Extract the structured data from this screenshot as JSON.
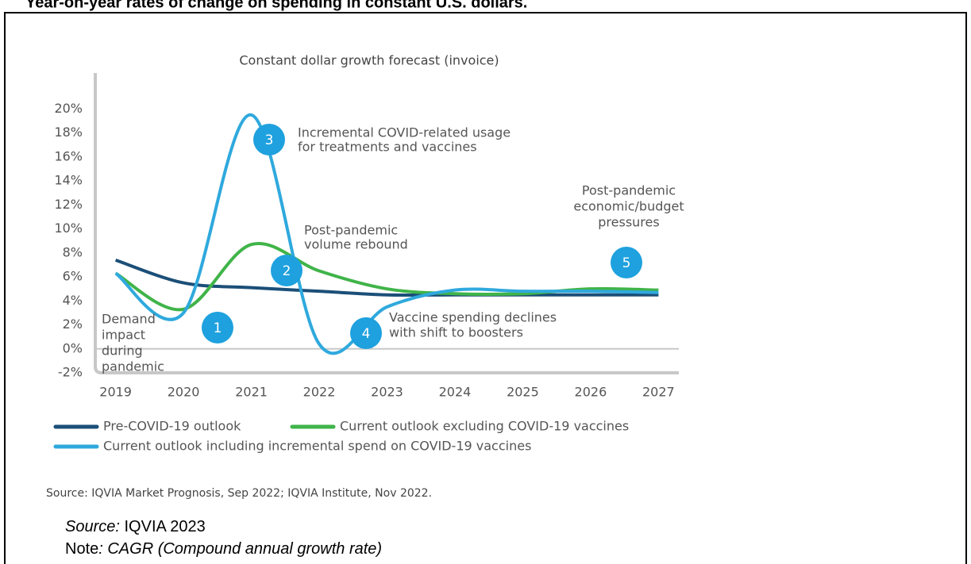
{
  "header": "Year-on-year rates of change on spending in constant U.S. dollars.",
  "chart_data": {
    "type": "line",
    "title": "Constant dollar growth forecast (invoice)",
    "x": [
      2019,
      2020,
      2021,
      2022,
      2023,
      2024,
      2025,
      2026,
      2027
    ],
    "xlim": [
      2018.7,
      2027.3
    ],
    "xticks": [
      2019,
      2020,
      2021,
      2022,
      2023,
      2024,
      2025,
      2026,
      2027
    ],
    "ylim": [
      -2,
      23
    ],
    "yticks": [
      {
        "value": -2,
        "label": "-2%"
      },
      {
        "value": 0,
        "label": "0%"
      },
      {
        "value": 2,
        "label": "2%"
      },
      {
        "value": 4,
        "label": "4%"
      },
      {
        "value": 6,
        "label": "6%"
      },
      {
        "value": 8,
        "label": "8%"
      },
      {
        "value": 10,
        "label": "10%"
      },
      {
        "value": 12,
        "label": "12%"
      },
      {
        "value": 14,
        "label": "14%"
      },
      {
        "value": 16,
        "label": "16%"
      },
      {
        "value": 18,
        "label": "18%"
      },
      {
        "value": 20,
        "label": "20%"
      }
    ],
    "series": [
      {
        "name": "Pre-COVID-19 outlook",
        "color": "#1b4f78",
        "values": [
          7.4,
          5.5,
          5.1,
          4.8,
          4.5,
          4.5,
          4.5,
          4.5,
          4.5
        ]
      },
      {
        "name": "Current outlook excluding COVID-19 vaccines",
        "color": "#40b449",
        "values": [
          6.3,
          3.3,
          8.7,
          6.5,
          5.0,
          4.6,
          4.6,
          5.0,
          4.9
        ]
      },
      {
        "name": "Current outlook including incremental spend on COVID-19 vaccines",
        "color": "#2fa9dd",
        "values": [
          6.3,
          3.0,
          19.5,
          0.4,
          3.5,
          4.9,
          4.8,
          4.8,
          4.7
        ]
      }
    ],
    "markers": [
      "1",
      "2",
      "3",
      "4",
      "5"
    ],
    "annotations": [
      [
        "Demand",
        "impact",
        "during",
        "pandemic"
      ],
      [
        "Incremental COVID-related usage",
        "for treatments and vaccines"
      ],
      [
        "Post-pandemic",
        "volume rebound"
      ],
      [
        "Vaccine spending declines",
        "with shift to boosters"
      ],
      [
        "Post-pandemic",
        "economic/budget",
        "pressures"
      ]
    ],
    "source": "Source: IQVIA Market Prognosis, Sep 2022; IQVIA Institute, Nov 2022."
  },
  "source_label": "Source:",
  "source_text": "IQVIA 2023",
  "note_label": "Note",
  "note_text": ": CAGR (Compound annual growth rate)"
}
